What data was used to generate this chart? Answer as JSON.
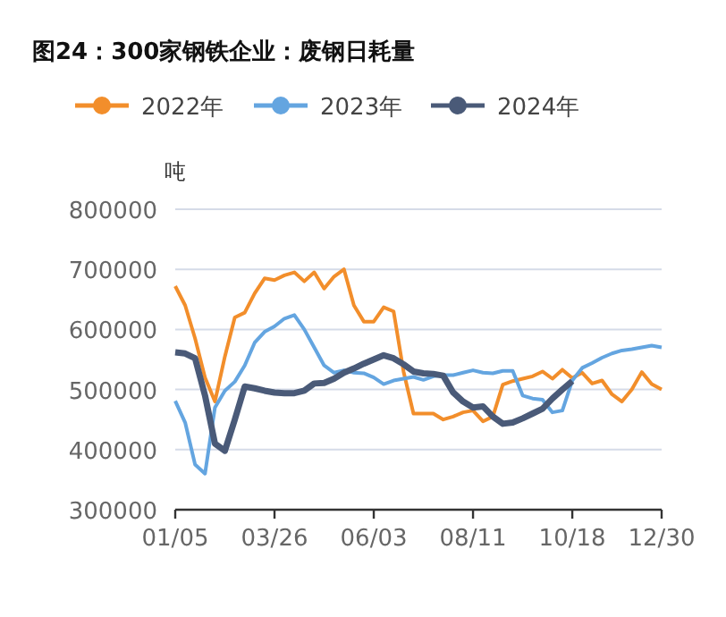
{
  "chart_data": {
    "type": "line",
    "title": "图24：300家钢铁企业：废钢日耗量",
    "ylabel": "吨",
    "categories": [
      "01/05",
      null,
      null,
      null,
      null,
      null,
      null,
      null,
      null,
      null,
      "03/26",
      null,
      null,
      null,
      null,
      null,
      null,
      null,
      null,
      null,
      "06/03",
      null,
      null,
      null,
      null,
      null,
      null,
      null,
      null,
      null,
      "08/11",
      null,
      null,
      null,
      null,
      null,
      null,
      null,
      null,
      null,
      "10/18",
      null,
      null,
      null,
      null,
      null,
      null,
      null,
      null,
      "12/30"
    ],
    "series": [
      {
        "name": "2022年",
        "color": "#f28e2b",
        "values": [
          672000,
          640000,
          585000,
          520000,
          480000,
          555000,
          620000,
          628000,
          660000,
          685000,
          682000,
          690000,
          695000,
          680000,
          695000,
          668000,
          688000,
          700000,
          640000,
          613000,
          613000,
          637000,
          630000,
          530000,
          460000,
          460000,
          460000,
          450000,
          455000,
          462000,
          465000,
          447000,
          455000,
          508000,
          514000,
          518000,
          522000,
          530000,
          518000,
          533000,
          519000,
          528000,
          510000,
          515000,
          492000,
          480000,
          500000,
          529000,
          509000,
          500000
        ]
      },
      {
        "name": "2023年",
        "color": "#64a5e0",
        "values": [
          481000,
          445000,
          375000,
          360000,
          470000,
          498000,
          513000,
          540000,
          578000,
          596000,
          605000,
          618000,
          624000,
          600000,
          570000,
          540000,
          528000,
          532000,
          528000,
          527000,
          520000,
          509000,
          515000,
          518000,
          521000,
          516000,
          522000,
          524000,
          524000,
          528000,
          532000,
          528000,
          527000,
          531000,
          531000,
          490000,
          485000,
          483000,
          462000,
          465000,
          515000,
          536000,
          544000,
          553000,
          560000,
          565000,
          567000,
          570000,
          573000,
          570000
        ]
      },
      {
        "name": "2024年",
        "color": "#4a5a78",
        "values": [
          562000,
          560000,
          552000,
          490000,
          410000,
          398000,
          450000,
          505000,
          502000,
          498000,
          495000,
          494000,
          494000,
          498000,
          510000,
          511000,
          518000,
          528000,
          535000,
          543000,
          550000,
          557000,
          552000,
          542000,
          530000,
          527000,
          526000,
          523000,
          495000,
          480000,
          470000,
          472000,
          455000,
          443000,
          445000,
          452000,
          460000,
          468000,
          485000,
          500000,
          514000,
          null,
          null,
          null,
          null,
          null,
          null,
          null,
          null,
          null
        ]
      }
    ],
    "ylim": [
      300000,
      800000
    ],
    "yticks": [
      300000,
      400000,
      500000,
      600000,
      700000,
      800000
    ],
    "grid": "y",
    "legend": "top"
  }
}
